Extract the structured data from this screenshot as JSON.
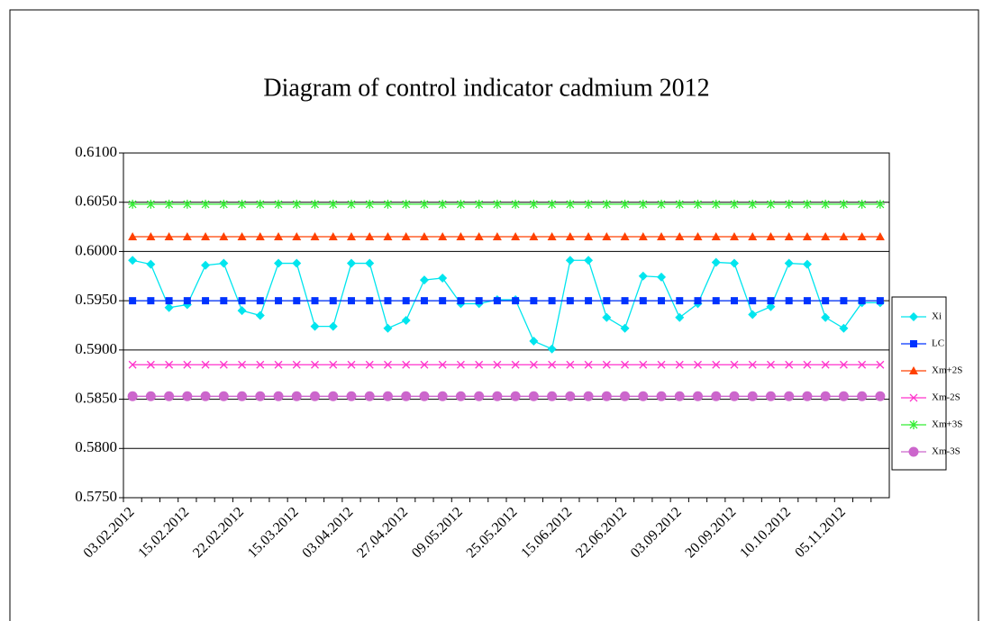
{
  "chart_data": {
    "type": "line",
    "title": "Diagram of control indicator cadmium 2012",
    "categories": [
      "03.02.2012",
      null,
      null,
      "15.02.2012",
      null,
      null,
      "22.02.2012",
      null,
      null,
      "15.03.2012",
      null,
      null,
      "03.04.2012",
      null,
      null,
      "27.04.2012",
      null,
      null,
      "09.05.2012",
      null,
      null,
      "25.05.2012",
      null,
      null,
      "15.06.2012",
      null,
      null,
      "22.06.2012",
      null,
      null,
      "03.09.2012",
      null,
      null,
      "20.09.2012",
      null,
      null,
      "10.10.2012",
      null,
      null,
      "05.11.2012",
      null,
      null
    ],
    "ylim": [
      0.575,
      0.61
    ],
    "yticks": [
      {
        "value": 0.575,
        "label": "0.5750"
      },
      {
        "value": 0.58,
        "label": "0.5800"
      },
      {
        "value": 0.585,
        "label": "0.5850"
      },
      {
        "value": 0.59,
        "label": "0.5900"
      },
      {
        "value": 0.595,
        "label": "0.5950"
      },
      {
        "value": 0.6,
        "label": "0.6000"
      },
      {
        "value": 0.605,
        "label": "0.6050"
      },
      {
        "value": 0.61,
        "label": "0.6100"
      }
    ],
    "grid": true,
    "legend": "right",
    "series": [
      {
        "name": "Xi",
        "color": "#00e5ee",
        "marker": "diamond",
        "values": [
          0.5991,
          0.5987,
          0.5943,
          0.5946,
          0.5986,
          0.5988,
          0.594,
          0.5935,
          0.5988,
          0.5988,
          0.5924,
          0.5924,
          0.5988,
          0.5988,
          0.5922,
          0.593,
          0.5971,
          0.5973,
          0.5947,
          0.5947,
          0.5951,
          0.5951,
          0.5909,
          0.5901,
          0.5991,
          0.5991,
          0.5933,
          0.5922,
          0.5975,
          0.5974,
          0.5933,
          0.5947,
          0.5989,
          0.5988,
          0.5936,
          0.5944,
          0.5988,
          0.5987,
          0.5933,
          0.5922,
          0.5948,
          0.5948
        ]
      },
      {
        "name": "LC",
        "color": "#0033ff",
        "marker": "square",
        "values": [
          0.595,
          0.595,
          0.595,
          0.595,
          0.595,
          0.595,
          0.595,
          0.595,
          0.595,
          0.595,
          0.595,
          0.595,
          0.595,
          0.595,
          0.595,
          0.595,
          0.595,
          0.595,
          0.595,
          0.595,
          0.595,
          0.595,
          0.595,
          0.595,
          0.595,
          0.595,
          0.595,
          0.595,
          0.595,
          0.595,
          0.595,
          0.595,
          0.595,
          0.595,
          0.595,
          0.595,
          0.595,
          0.595,
          0.595,
          0.595,
          0.595,
          0.595
        ]
      },
      {
        "name": "Xm+2S",
        "color": "#ff4000",
        "marker": "triangle",
        "values": [
          0.6015,
          0.6015,
          0.6015,
          0.6015,
          0.6015,
          0.6015,
          0.6015,
          0.6015,
          0.6015,
          0.6015,
          0.6015,
          0.6015,
          0.6015,
          0.6015,
          0.6015,
          0.6015,
          0.6015,
          0.6015,
          0.6015,
          0.6015,
          0.6015,
          0.6015,
          0.6015,
          0.6015,
          0.6015,
          0.6015,
          0.6015,
          0.6015,
          0.6015,
          0.6015,
          0.6015,
          0.6015,
          0.6015,
          0.6015,
          0.6015,
          0.6015,
          0.6015,
          0.6015,
          0.6015,
          0.6015,
          0.6015,
          0.6015
        ]
      },
      {
        "name": "Xm-2S",
        "color": "#ff33cc",
        "marker": "x",
        "values": [
          0.5885,
          0.5885,
          0.5885,
          0.5885,
          0.5885,
          0.5885,
          0.5885,
          0.5885,
          0.5885,
          0.5885,
          0.5885,
          0.5885,
          0.5885,
          0.5885,
          0.5885,
          0.5885,
          0.5885,
          0.5885,
          0.5885,
          0.5885,
          0.5885,
          0.5885,
          0.5885,
          0.5885,
          0.5885,
          0.5885,
          0.5885,
          0.5885,
          0.5885,
          0.5885,
          0.5885,
          0.5885,
          0.5885,
          0.5885,
          0.5885,
          0.5885,
          0.5885,
          0.5885,
          0.5885,
          0.5885,
          0.5885,
          0.5885
        ]
      },
      {
        "name": "Xm+3S",
        "color": "#33ee33",
        "marker": "star",
        "values": [
          0.6048,
          0.6048,
          0.6048,
          0.6048,
          0.6048,
          0.6048,
          0.6048,
          0.6048,
          0.6048,
          0.6048,
          0.6048,
          0.6048,
          0.6048,
          0.6048,
          0.6048,
          0.6048,
          0.6048,
          0.6048,
          0.6048,
          0.6048,
          0.6048,
          0.6048,
          0.6048,
          0.6048,
          0.6048,
          0.6048,
          0.6048,
          0.6048,
          0.6048,
          0.6048,
          0.6048,
          0.6048,
          0.6048,
          0.6048,
          0.6048,
          0.6048,
          0.6048,
          0.6048,
          0.6048,
          0.6048,
          0.6048,
          0.6048
        ]
      },
      {
        "name": "Xm-3S",
        "color": "#cc66cc",
        "marker": "circle",
        "values": [
          0.5853,
          0.5853,
          0.5853,
          0.5853,
          0.5853,
          0.5853,
          0.5853,
          0.5853,
          0.5853,
          0.5853,
          0.5853,
          0.5853,
          0.5853,
          0.5853,
          0.5853,
          0.5853,
          0.5853,
          0.5853,
          0.5853,
          0.5853,
          0.5853,
          0.5853,
          0.5853,
          0.5853,
          0.5853,
          0.5853,
          0.5853,
          0.5853,
          0.5853,
          0.5853,
          0.5853,
          0.5853,
          0.5853,
          0.5853,
          0.5853,
          0.5853,
          0.5853,
          0.5853,
          0.5853,
          0.5853,
          0.5853,
          0.5853
        ]
      }
    ]
  }
}
